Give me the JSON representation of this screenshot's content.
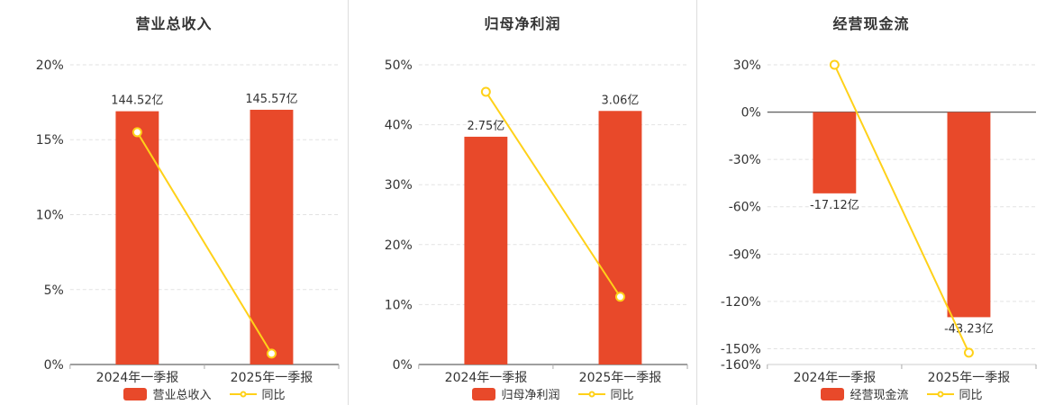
{
  "colors": {
    "bar": "#e8492a",
    "line": "#ffd119",
    "grid": "#e2e2e2",
    "zero_axis": "#666666",
    "edge_axis": "#cccccc",
    "text": "#333333"
  },
  "chart_data": [
    {
      "type": "bar",
      "title": "营业总收入",
      "categories": [
        "2024年一季报",
        "2025年一季报"
      ],
      "bars": {
        "name": "营业总收入",
        "unit": "亿",
        "values_yi": [
          144.52,
          145.57
        ],
        "labels": [
          "144.52亿",
          "145.57亿"
        ],
        "display_pct": [
          16.9,
          17.0
        ]
      },
      "line": {
        "name": "同比",
        "values_pct": [
          15.5,
          0.73
        ]
      },
      "axis": {
        "min": 0,
        "max": 20,
        "ticks": [
          0,
          5,
          10,
          15,
          20
        ],
        "tick_labels": [
          "0%",
          "5%",
          "10%",
          "15%",
          "20%"
        ]
      },
      "legend": [
        "营业总收入",
        "同比"
      ]
    },
    {
      "type": "bar",
      "title": "归母净利润",
      "categories": [
        "2024年一季报",
        "2025年一季报"
      ],
      "bars": {
        "name": "归母净利润",
        "unit": "亿",
        "values_yi": [
          2.75,
          3.06
        ],
        "labels": [
          "2.75亿",
          "3.06亿"
        ],
        "display_pct": [
          38.0,
          42.3
        ]
      },
      "line": {
        "name": "同比",
        "values_pct": [
          45.5,
          11.3
        ]
      },
      "axis": {
        "min": 0,
        "max": 50,
        "ticks": [
          0,
          10,
          20,
          30,
          40,
          50
        ],
        "tick_labels": [
          "0%",
          "10%",
          "20%",
          "30%",
          "40%",
          "50%"
        ]
      },
      "legend": [
        "归母净利润",
        "同比"
      ]
    },
    {
      "type": "bar",
      "title": "经营现金流",
      "categories": [
        "2024年一季报",
        "2025年一季报"
      ],
      "bars": {
        "name": "经营现金流",
        "unit": "亿",
        "values_yi": [
          -17.12,
          -43.23
        ],
        "labels": [
          "-17.12亿",
          "-43.23亿"
        ],
        "display_pct": [
          -51.5,
          -130.0
        ]
      },
      "line": {
        "name": "同比",
        "values_pct": [
          30.0,
          -152.5
        ]
      },
      "axis": {
        "min": -160,
        "max": 30,
        "ticks": [
          30,
          0,
          -30,
          -60,
          -90,
          -120,
          -150,
          -160
        ],
        "tick_labels": [
          "30%",
          "0%",
          "-30%",
          "-60%",
          "-90%",
          "-120%",
          "-150%",
          "-160%"
        ]
      },
      "legend": [
        "经营现金流",
        "同比"
      ]
    }
  ]
}
